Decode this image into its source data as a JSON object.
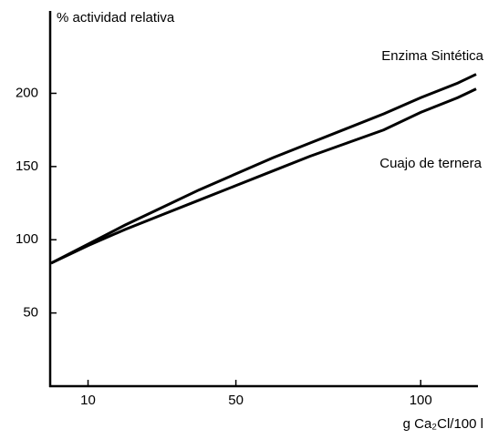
{
  "chart_data": {
    "type": "line",
    "y_label": "% actividad relativa",
    "x_label": "g Ca₂Cl/100 l",
    "x": [
      0,
      10,
      20,
      30,
      40,
      50,
      60,
      70,
      80,
      90,
      100,
      110,
      115
    ],
    "series": [
      {
        "name": "Enzima Sintética",
        "color": "#000000",
        "values": [
          84,
          97,
          110,
          122,
          134,
          145,
          156,
          166,
          176,
          186,
          197,
          207,
          213
        ]
      },
      {
        "name": "Cuajo de ternera",
        "color": "#000000",
        "values": [
          84,
          96,
          107,
          117,
          127,
          137,
          147,
          157,
          166,
          175,
          187,
          197,
          203
        ]
      }
    ],
    "xlim": [
      0,
      115
    ],
    "xticks": [
      10,
      50,
      100
    ],
    "ylim": [
      0,
      260
    ],
    "yticks": [
      50,
      100,
      150,
      200
    ],
    "grid": false
  }
}
